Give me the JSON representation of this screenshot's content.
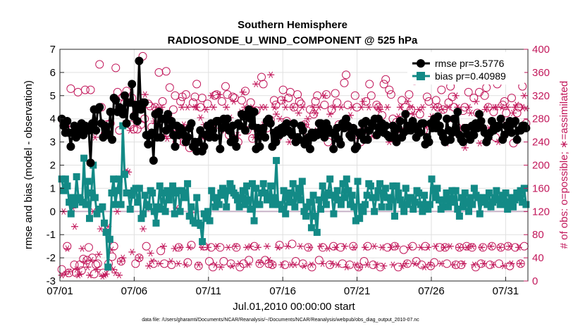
{
  "chart_data": {
    "type": "line",
    "title_line1": "Southern Hemisphere",
    "title_line2": "RADIOSONDE_U_WIND_COMPONENT @ 525 hPa",
    "xlabel": "Jul.01,2010 00:00:00 start",
    "ylabel_left": "rmse and bias (model - observation)",
    "ylabel_right": "# of obs: o=possible; ∗=assimilated",
    "footnote": "data file: /Users/gharamti/Documents/NCAR/Reanalysis/~/Documents/NCAR/Reanalysis/webpub/obs_diag_output_2010-07.nc",
    "xlim": [
      0,
      31.5
    ],
    "ylim_left": [
      -3,
      7
    ],
    "ylim_right": [
      0,
      400
    ],
    "x_ticks": [
      0,
      5,
      10,
      15,
      20,
      25,
      30
    ],
    "x_tick_labels": [
      "07/01",
      "07/06",
      "07/11",
      "07/16",
      "07/21",
      "07/26",
      "07/31"
    ],
    "y_ticks_left": [
      -3,
      -2,
      -1,
      0,
      1,
      2,
      3,
      4,
      5,
      6,
      7
    ],
    "y_ticks_right": [
      0,
      40,
      80,
      120,
      160,
      200,
      240,
      280,
      320,
      360,
      400
    ],
    "colors": {
      "rmse": "#000000",
      "bias": "#138a86",
      "obs": "#c2185b",
      "zero_line": "#c8b4c8",
      "grid": "#e0e0e0"
    },
    "legend": [
      {
        "name": "rmse pr=3.5776",
        "series": "rmse"
      },
      {
        "name": "bias pr=0.40989",
        "series": "bias"
      }
    ],
    "series": [
      {
        "name": "rmse",
        "values": [
          4.0,
          3.7,
          3.4,
          3.9,
          3.4,
          2.8,
          3.4,
          3.7,
          3.2,
          3.6,
          3.4,
          3.8,
          3.3,
          3.7,
          3.6,
          3.5,
          2.1,
          3.8,
          4.4,
          3.5,
          4.4,
          4.5,
          3.8,
          3.2,
          3.7,
          3.4,
          3.3,
          4.3,
          3.1,
          4.9,
          4.8,
          4.3,
          4.5,
          4.4,
          4.2,
          5.0,
          3.8,
          4.7,
          4.7,
          5.5,
          4.1,
          4.6,
          3.9,
          6.5,
          4.4,
          4.7,
          4.7,
          3.3,
          2.9,
          3.3,
          3.4,
          2.2,
          4.2,
          3.2,
          4.3,
          3.2,
          4.0,
          4.0,
          3.5,
          4.2,
          3.6,
          3.9,
          3.3,
          2.8,
          3.7,
          3.3,
          3.6,
          3.5,
          3.3,
          3.0,
          3.2,
          3.6,
          3.8,
          2.8,
          3.0,
          2.6,
          3.0,
          3.5,
          2.6,
          2.8,
          3.3,
          3.7,
          3.2,
          3.8,
          3.5,
          3.2,
          3.9,
          3.9,
          2.7,
          3.6,
          4.0,
          3.7,
          4.0,
          3.5,
          3.0,
          3.7,
          3.1,
          2.8,
          3.8,
          3.7,
          4.2,
          4.1,
          3.5,
          4.2,
          4.4,
          4.0,
          3.7,
          4.3,
          2.7,
          3.6,
          2.8,
          3.4,
          3.6,
          3.2,
          3.9,
          4.0,
          3.8,
          2.8,
          3.4,
          3.0,
          3.5,
          3.3,
          3.6,
          3.4,
          3.7,
          3.8,
          3.5,
          3.4,
          3.3,
          3.8,
          3.0,
          3.2,
          3.1,
          3.7,
          3.5,
          2.9,
          3.0,
          3.2,
          2.7,
          3.4,
          3.2,
          3.4,
          3.3,
          3.8,
          3.8,
          3.5,
          3.2,
          3.8,
          3.6,
          3.4,
          3.4,
          2.7,
          3.3,
          3.6,
          3.1,
          2.9,
          3.8,
          3.6,
          4.0,
          3.7,
          3.3,
          3.2,
          3.6,
          2.7,
          2.8,
          3.4,
          3.3,
          3.8,
          3.1,
          3.9,
          3.1,
          3.5,
          3.8,
          3.7,
          4.0,
          3.3,
          4.0,
          3.5,
          3.8,
          3.4,
          3.7,
          3.3,
          3.2,
          3.2,
          3.7,
          3.5,
          3.0,
          3.6,
          3.9,
          3.2,
          3.4,
          4.2,
          3.5,
          3.7,
          3.5,
          3.9,
          3.7,
          3.2,
          3.5,
          3.4,
          3.8,
          3.8,
          2.9,
          3.2,
          3.0,
          3.8,
          3.6,
          4.0,
          3.6,
          4.1,
          3.7,
          3.4,
          3.2,
          3.0,
          4.0,
          3.5,
          3.1,
          3.4,
          4.0,
          3.6,
          4.3,
          3.3,
          3.1,
          3.0,
          3.6,
          3.6,
          3.3,
          3.1,
          3.7,
          3.3,
          3.8,
          3.6,
          4.2,
          3.9,
          3.6,
          3.4,
          3.0,
          3.2,
          3.4,
          3.9,
          3.5,
          3.7,
          3.6,
          3.7,
          4.0,
          3.1,
          3.3,
          3.7,
          3.6,
          3.9,
          3.4,
          3.8,
          3.9,
          3.1,
          3.5,
          3.5,
          3.7,
          3.7,
          3.6
        ]
      },
      {
        "name": "bias",
        "values": [
          1.4,
          0.9,
          1.4,
          1.1,
          0.4,
          -0.1,
          0.6,
          0.3,
          1.5,
          0.6,
          0.5,
          0.4,
          2.3,
          0.3,
          1.3,
          -0.3,
          0.8,
          2.0,
          0.6,
          -0.1,
          0.1,
          0.1,
          0.2,
          -0.5,
          -0.9,
          -2.4,
          -1.2,
          0.8,
          1.4,
          0.3,
          0.9,
          1.4,
          0.3,
          3.7,
          1.6,
          0.8,
          0.8,
          0.1,
          0.7,
          0.9,
          1.0,
          0.4,
          1.0,
          -0.3,
          -0.1,
          0.7,
          0.3,
          0.2,
          0.9,
          0.8,
          0.0,
          -0.5,
          0.2,
          1.1,
          0.1,
          0.8,
          0.0,
          0.9,
          0.5,
          0.8,
          1.1,
          -0.1,
          0.8,
          0.9,
          0.0,
          0.9,
          0.8,
          0.6,
          1.2,
          -0.2,
          0.2,
          -0.4,
          -0.5,
          0.6,
          -0.5,
          -0.6,
          -1.3,
          -0.1,
          -0.3,
          0.0,
          -0.4,
          0.9,
          0.6,
          0.2,
          0.6,
          0.3,
          0.8,
          1.0,
          0.7,
          0.2,
          0.9,
          1.2,
          1.0,
          0.8,
          0.7,
          0.5,
          0.2,
          0.6,
          0.9,
          0.3,
          1.1,
          0.5,
          0.1,
          1.2,
          -0.4,
          1.0,
          0.3,
          0.3,
          0.8,
          1.2,
          0.8,
          0.5,
          0.6,
          1.1,
          0.3,
          0.6,
          2.2,
          0.3,
          0.3,
          0.1,
          0.9,
          -0.1,
          0.6,
          0.8,
          0.4,
          1.2,
          0.2,
          0.7,
          1.0,
          0.5,
          1.3,
          0.0,
          -0.2,
          0.2,
          0.4,
          -0.7,
          0.7,
          -0.2,
          -0.9,
          0.5,
          0.1,
          1.1,
          0.6,
          0.3,
          0.8,
          1.4,
          0.7,
          -0.1,
          0.6,
          0.9,
          0.5,
          0.3,
          1.2,
          0.6,
          1.4,
          0.9,
          0.3,
          0.7,
          0.2,
          -0.4,
          1.3,
          -0.3,
          0.2,
          0.0,
          0.3,
          0.7,
          1.2,
          1.1,
          0.6,
          0.0,
          0.6,
          0.9,
          1.2,
          0.2,
          0.8,
          1.0,
          0.6,
          0.2,
          0.5,
          1.1,
          -0.2,
          1.1,
          0.8,
          0.5,
          0.3,
          0.0,
          1.0,
          0.3,
          0.6,
          0.6,
          0.1,
          0.4,
          0.9,
          0.8,
          0.3,
          0.0,
          0.7,
          0.3,
          0.1,
          0.3,
          1.4,
          0.9,
          0.6,
          1.0,
          0.5,
          0.1,
          0.2,
          0.5,
          0.8,
          0.2,
          0.5,
          0.9,
          0.4,
          0.9,
          0.1,
          -0.2,
          0.6,
          0.2,
          0.8,
          0.4,
          0.0,
          0.6,
          0.3,
          1.0,
          0.7,
          0.6,
          -0.1,
          0.4,
          0.6,
          0.5,
          0.3,
          0.8,
          0.2,
          0.4,
          0.6,
          0.9,
          0.5,
          0.3,
          0.7,
          0.3,
          0.8,
          0.1,
          0.4,
          0.6,
          0.2,
          0.5,
          0.8,
          0.6,
          0.9,
          0.4,
          1.0,
          0.3
        ]
      },
      {
        "name": "possible",
        "values": [
          20,
          274,
          268,
          60,
          14,
          332,
          262,
          28,
          14,
          326,
          28,
          18,
          38,
          330,
          36,
          58,
          330,
          40,
          12,
          28,
          30,
          374,
          300,
          14,
          254,
          270,
          30,
          272,
          42,
          60,
          368,
          326,
          260,
          34,
          318,
          308,
          328,
          308,
          270,
          316,
          262,
          30,
          262,
          40,
          270,
          388,
          280,
          60,
          306,
          302,
          266,
          30,
          300,
          290,
          360,
          52,
          310,
          30,
          362,
          284,
          334,
          28,
          296,
          320,
          240,
          58,
          310,
          318,
          240,
          322,
          32,
          230,
          62,
          308,
          318,
          340,
          26,
          300,
          316,
          60,
          250,
          306,
          34,
          58,
          24,
          320,
          322,
          270,
          58,
          310,
          34,
          336,
          322,
          252,
          30,
          318,
          316,
          58,
          240,
          24,
          312,
          30,
          328,
          260,
          36,
          308,
          246,
          60,
          294,
          260,
          30,
          352,
          340,
          36,
          264,
          30,
          278,
          28,
          312,
          304,
          248,
          62,
          312,
          330,
          28,
          276,
          316,
          326,
          64,
          300,
          34,
          322,
          310,
          306,
          30,
          270,
          260,
          58,
          296,
          24,
          288,
          310,
          320,
          36,
          260,
          58,
          304,
          322,
          240,
          28,
          296,
          60,
          324,
          308,
          270,
          58,
          30,
          342,
          356,
          304,
          28,
          264,
          60,
          320,
          300,
          24,
          240,
          258,
          34,
          310,
          60,
          340,
          320,
          28,
          272,
          304,
          300,
          24,
          286,
          340,
          348,
          58,
          330,
          322,
          280,
          60,
          274,
          24,
          250,
          312,
          54,
          300,
          30,
          322,
          296,
          60,
          346,
          34,
          352,
          288,
          28,
          260,
          60,
          318,
          310,
          26,
          268,
          32,
          312,
          300,
          58,
          330,
          296,
          58,
          30,
          308,
          336,
          318,
          300,
          28,
          256,
          58,
          28,
          294,
          300,
          60,
          326,
          250,
          58,
          316,
          24,
          290,
          326,
          30,
          58,
          320,
          334,
          300,
          28,
          60,
          292,
          248,
          340,
          30,
          58,
          304,
          310,
          290,
          60,
          26,
          316,
          238,
          58,
          290,
          300,
          30,
          336,
          60,
          272
        ],
        "marker": "circle"
      },
      {
        "name": "assimilated",
        "values": [
          10,
          120,
          12,
          56,
          16,
          256,
          126,
          94,
          20,
          10,
          12,
          56,
          264,
          34,
          24,
          10,
          36,
          120,
          248,
          20,
          46,
          90,
          8,
          10,
          12,
          94,
          22,
          54,
          20,
          14,
          120,
          10,
          34,
          40,
          272,
          190,
          188,
          260,
          50,
          286,
          292,
          300,
          40,
          110,
          90,
          322,
          126,
          26,
          48,
          34,
          276,
          300,
          124,
          30,
          300,
          60,
          250,
          246,
          272,
          34,
          260,
          56,
          126,
          30,
          58,
          300,
          270,
          28,
          300,
          58,
          118,
          228,
          300,
          300,
          28,
          282,
          58,
          270,
          296,
          58,
          250,
          320,
          300,
          28,
          60,
          322,
          24,
          270,
          260,
          300,
          58,
          282,
          26,
          310,
          60,
          252,
          30,
          292,
          326,
          300,
          58,
          28,
          60,
          300,
          248,
          340,
          58,
          32,
          300,
          270,
          300,
          60,
          36,
          356,
          28,
          300,
          288,
          58,
          280,
          28,
          312,
          300,
          60,
          240,
          28,
          300,
          28,
          250,
          290,
          60,
          300,
          26,
          270,
          280,
          58,
          28,
          300,
          290,
          260,
          300,
          60,
          30,
          320,
          260,
          56,
          288,
          30,
          300,
          58,
          28,
          266,
          300,
          274,
          60,
          24,
          260,
          286,
          300,
          58,
          28,
          250,
          24,
          300,
          310,
          58,
          28,
          300,
          266,
          250,
          60,
          28,
          300,
          296,
          58,
          26,
          270,
          300,
          240,
          58,
          28,
          252,
          60,
          284,
          300,
          26,
          260,
          30,
          310,
          58,
          300,
          288,
          30,
          248,
          296,
          58,
          300,
          24,
          266,
          58,
          28,
          284,
          300,
          60,
          300,
          264,
          30,
          296,
          58,
          238,
          300,
          60,
          280,
          28,
          320,
          300,
          58,
          266,
          30,
          230,
          58,
          300,
          290,
          60,
          28,
          310,
          270,
          238,
          58,
          30,
          296,
          300,
          264,
          60,
          28,
          300,
          300,
          240,
          58,
          300,
          26,
          270,
          300,
          60,
          30,
          290,
          300,
          304,
          58,
          30,
          300,
          320,
          298
        ],
        "marker": "asterisk"
      }
    ]
  }
}
